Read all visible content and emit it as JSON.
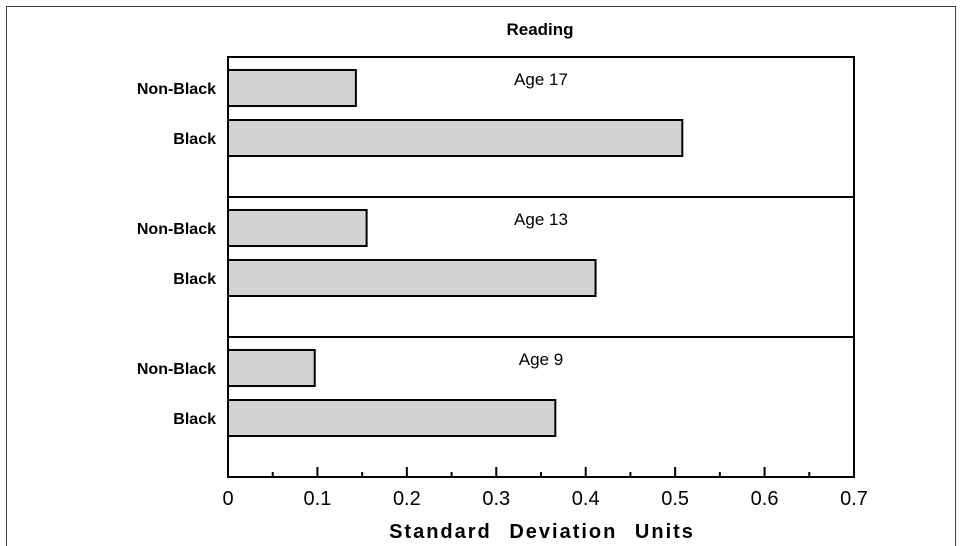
{
  "chart_data": {
    "type": "bar",
    "orientation": "horizontal",
    "title": "Reading",
    "xlabel": "Standard Deviation Units",
    "ylabel": "",
    "xlim": [
      0,
      0.7
    ],
    "xticks": [
      0,
      0.1,
      0.2,
      0.3,
      0.4,
      0.5,
      0.6,
      0.7
    ],
    "xtick_labels": [
      "0",
      "0.1",
      "0.2",
      "0.3",
      "0.4",
      "0.5",
      "0.6",
      "0.7"
    ],
    "grid": false,
    "panels": [
      {
        "label": "Age 17",
        "categories": [
          "Non-Black",
          "Black"
        ],
        "values": [
          0.143,
          0.508
        ]
      },
      {
        "label": "Age 13",
        "categories": [
          "Non-Black",
          "Black"
        ],
        "values": [
          0.155,
          0.411
        ]
      },
      {
        "label": "Age 9",
        "categories": [
          "Non-Black",
          "Black"
        ],
        "values": [
          0.097,
          0.366
        ]
      }
    ],
    "colors": {
      "bar_fill": "#d3d3d3",
      "bar_stroke": "#000000",
      "frame": "#000000"
    }
  }
}
